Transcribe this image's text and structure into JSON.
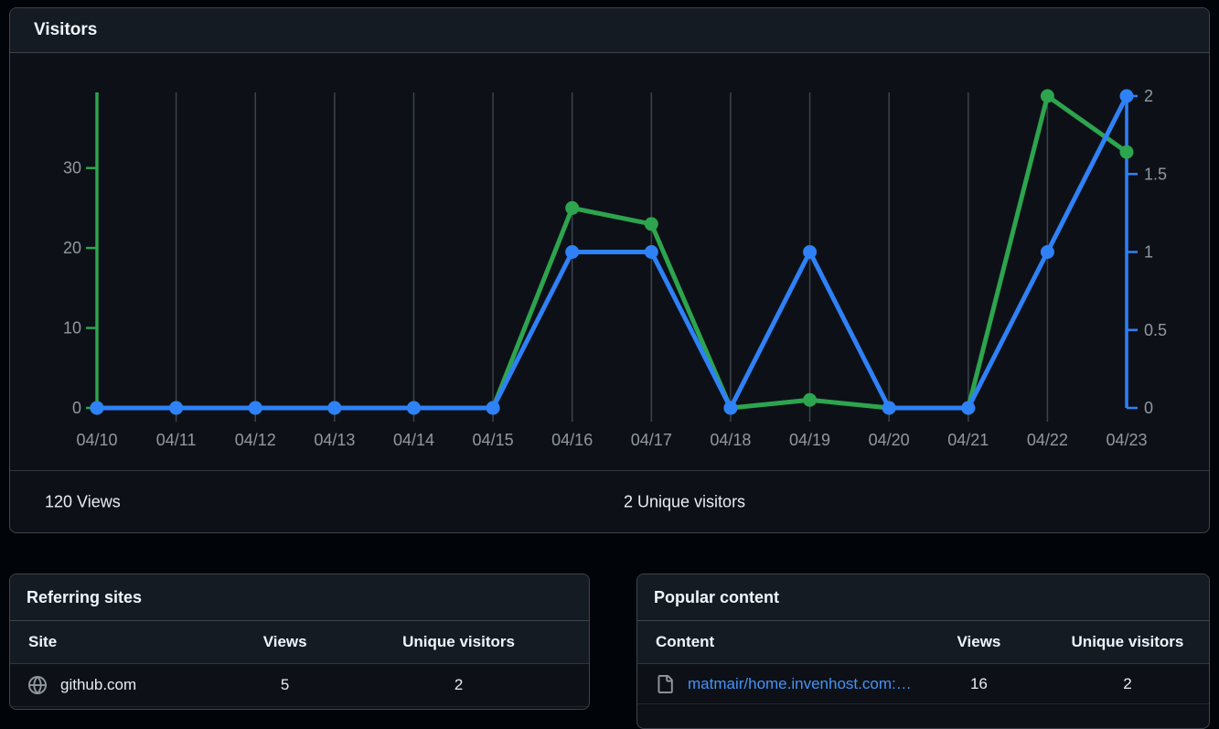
{
  "visitors_panel": {
    "title": "Visitors",
    "summary": {
      "views": "120 Views",
      "unique_visitors": "2 Unique visitors"
    }
  },
  "chart_data": {
    "type": "line",
    "title": "Visitors",
    "x": [
      "04/10",
      "04/11",
      "04/12",
      "04/13",
      "04/14",
      "04/15",
      "04/16",
      "04/17",
      "04/18",
      "04/19",
      "04/20",
      "04/21",
      "04/22",
      "04/23"
    ],
    "series": [
      {
        "name": "Views",
        "axis": "left",
        "color": "#2da44e",
        "values": [
          0,
          0,
          0,
          0,
          0,
          0,
          25,
          23,
          0,
          1,
          0,
          0,
          39,
          32
        ]
      },
      {
        "name": "Unique visitors",
        "axis": "right",
        "color": "#2f81f7",
        "values": [
          0,
          0,
          0,
          0,
          0,
          0,
          1,
          1,
          0,
          1,
          0,
          0,
          1,
          2
        ]
      }
    ],
    "left_axis": {
      "ticks": [
        0,
        10,
        20,
        30
      ],
      "max": 39,
      "color": "#2da44e"
    },
    "right_axis": {
      "ticks": [
        0,
        0.5,
        1,
        1.5,
        2
      ],
      "max": 2,
      "color": "#2f81f7"
    },
    "grid": "vertical-only",
    "legend": "none"
  },
  "referring_sites": {
    "title": "Referring sites",
    "columns": [
      "Site",
      "Views",
      "Unique visitors"
    ],
    "rows": [
      {
        "icon": "globe-icon",
        "site": "github.com",
        "views": "5",
        "unique_visitors": "2"
      }
    ]
  },
  "popular_content": {
    "title": "Popular content",
    "columns": [
      "Content",
      "Views",
      "Unique visitors"
    ],
    "rows": [
      {
        "icon": "file-icon",
        "content": "matmair/home.invenhost.com: A ...",
        "views": "16",
        "unique_visitors": "2"
      }
    ]
  },
  "colors": {
    "views_green": "#2da44e",
    "unique_blue": "#2f81f7",
    "grid_line": "#3c434d",
    "tick_text": "#9198a1",
    "link_blue": "#4493f8"
  }
}
